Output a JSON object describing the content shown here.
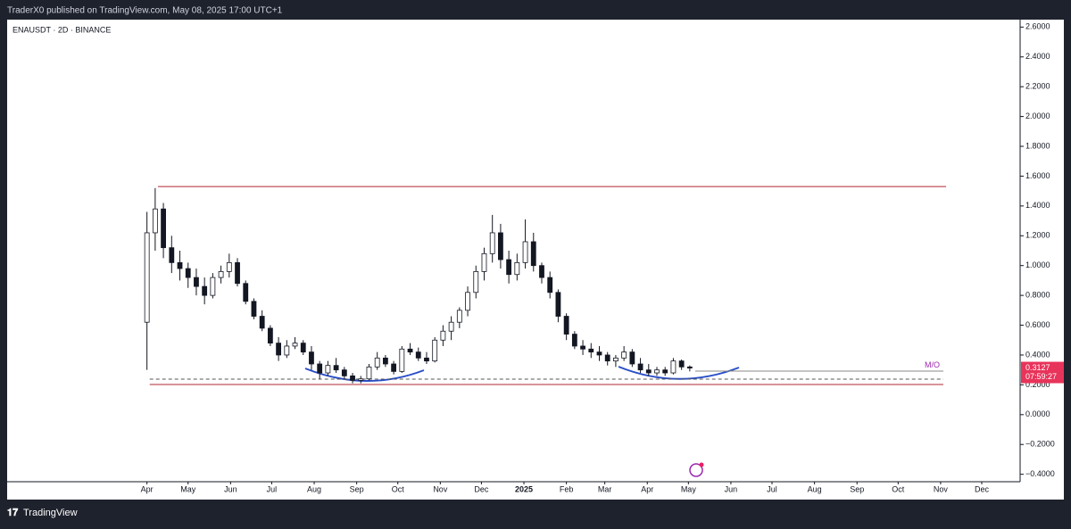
{
  "header": "TraderX0 published on TradingView.com, May 08, 2025 17:00 UTC+1",
  "footer": "TradingView",
  "chart_data": {
    "type": "candlestick",
    "title": "ENAUSDT · 2D · BINANCE",
    "x": [
      0,
      6,
      12,
      18,
      24,
      30,
      36,
      42,
      48,
      54,
      60,
      66,
      72,
      78,
      84,
      90,
      96,
      102,
      108,
      114,
      120,
      126,
      132,
      138,
      144,
      150,
      156,
      162,
      168,
      174,
      180,
      186,
      192,
      198,
      204,
      210,
      216,
      222,
      228,
      234,
      240,
      246,
      252,
      258,
      264,
      270,
      276,
      282,
      288,
      294,
      300,
      306,
      312,
      318,
      324,
      330,
      336,
      342,
      348,
      354,
      360,
      366,
      372,
      378,
      384,
      390,
      396
    ],
    "open": [
      0.62,
      1.22,
      1.38,
      1.12,
      1.02,
      0.98,
      0.92,
      0.86,
      0.8,
      0.92,
      0.96,
      1.02,
      0.88,
      0.76,
      0.66,
      0.58,
      0.48,
      0.4,
      0.46,
      0.48,
      0.42,
      0.34,
      0.28,
      0.33,
      0.3,
      0.26,
      0.23,
      0.24,
      0.32,
      0.38,
      0.34,
      0.29,
      0.44,
      0.42,
      0.38,
      0.36,
      0.5,
      0.56,
      0.62,
      0.7,
      0.82,
      0.96,
      1.08,
      1.22,
      1.04,
      0.94,
      1.02,
      1.16,
      1.0,
      0.92,
      0.82,
      0.66,
      0.54,
      0.46,
      0.44,
      0.42,
      0.4,
      0.36,
      0.38,
      0.42,
      0.34,
      0.3,
      0.28,
      0.3,
      0.28,
      0.36,
      0.32
    ],
    "high": [
      1.36,
      1.52,
      1.42,
      1.2,
      1.1,
      1.02,
      0.98,
      0.92,
      0.95,
      1.0,
      1.08,
      1.05,
      0.9,
      0.78,
      0.7,
      0.6,
      0.52,
      0.5,
      0.52,
      0.5,
      0.46,
      0.36,
      0.36,
      0.38,
      0.32,
      0.28,
      0.26,
      0.34,
      0.42,
      0.4,
      0.36,
      0.46,
      0.48,
      0.45,
      0.42,
      0.52,
      0.6,
      0.66,
      0.72,
      0.86,
      1.0,
      1.12,
      1.34,
      1.28,
      1.1,
      1.08,
      1.31,
      1.22,
      1.02,
      0.96,
      0.84,
      0.68,
      0.56,
      0.5,
      0.48,
      0.46,
      0.42,
      0.4,
      0.46,
      0.44,
      0.38,
      0.34,
      0.32,
      0.32,
      0.38,
      0.37,
      0.33
    ],
    "low": [
      0.3,
      1.1,
      1.05,
      0.95,
      0.9,
      0.85,
      0.8,
      0.74,
      0.78,
      0.88,
      0.92,
      0.86,
      0.74,
      0.64,
      0.56,
      0.46,
      0.36,
      0.38,
      0.44,
      0.4,
      0.3,
      0.24,
      0.26,
      0.28,
      0.24,
      0.21,
      0.21,
      0.23,
      0.3,
      0.32,
      0.27,
      0.28,
      0.4,
      0.36,
      0.34,
      0.35,
      0.46,
      0.5,
      0.58,
      0.66,
      0.78,
      0.9,
      1.02,
      0.98,
      0.88,
      0.9,
      0.98,
      0.96,
      0.88,
      0.78,
      0.62,
      0.5,
      0.44,
      0.4,
      0.38,
      0.36,
      0.33,
      0.32,
      0.36,
      0.32,
      0.28,
      0.26,
      0.26,
      0.26,
      0.27,
      0.3,
      0.29
    ],
    "close": [
      1.22,
      1.38,
      1.12,
      1.02,
      0.98,
      0.92,
      0.86,
      0.8,
      0.92,
      0.96,
      1.02,
      0.88,
      0.76,
      0.66,
      0.58,
      0.48,
      0.4,
      0.46,
      0.48,
      0.42,
      0.34,
      0.28,
      0.33,
      0.3,
      0.26,
      0.23,
      0.24,
      0.32,
      0.38,
      0.34,
      0.29,
      0.44,
      0.42,
      0.38,
      0.36,
      0.5,
      0.56,
      0.62,
      0.7,
      0.82,
      0.96,
      1.08,
      1.22,
      1.04,
      0.94,
      1.02,
      1.16,
      1.0,
      0.92,
      0.82,
      0.66,
      0.54,
      0.46,
      0.44,
      0.42,
      0.4,
      0.36,
      0.38,
      0.42,
      0.34,
      0.3,
      0.28,
      0.3,
      0.28,
      0.36,
      0.32,
      0.3127
    ],
    "up_color": "#ffffff",
    "down_color": "#131722",
    "border_color": "#131722",
    "countdown": "07:59:27",
    "annotation": "M/O",
    "levels": [
      {
        "value": 1.53,
        "color": "#b22833",
        "style": "solid"
      },
      {
        "value": 0.202,
        "color": "#b22833",
        "style": "solid"
      },
      {
        "value": 0.238,
        "color": "#555555",
        "style": "dashed"
      },
      {
        "value": 0.292,
        "color": "#888888",
        "style": "solid"
      }
    ],
    "xlim": [
      -102,
      637
    ],
    "xticks": [
      {
        "value": 0,
        "label": "Apr"
      },
      {
        "value": 30,
        "label": "May"
      },
      {
        "value": 61,
        "label": "Jun"
      },
      {
        "value": 91,
        "label": "Jul"
      },
      {
        "value": 122,
        "label": "Aug"
      },
      {
        "value": 153,
        "label": "Sep"
      },
      {
        "value": 183,
        "label": "Oct"
      },
      {
        "value": 214,
        "label": "Nov"
      },
      {
        "value": 244,
        "label": "Dec"
      },
      {
        "value": 275,
        "label": "2025"
      },
      {
        "value": 306,
        "label": "Feb"
      },
      {
        "value": 334,
        "label": "Mar"
      },
      {
        "value": 365,
        "label": "Apr"
      },
      {
        "value": 395,
        "label": "May"
      },
      {
        "value": 426,
        "label": "Jun"
      },
      {
        "value": 456,
        "label": "Jul"
      },
      {
        "value": 487,
        "label": "Aug"
      },
      {
        "value": 518,
        "label": "Sep"
      },
      {
        "value": 548,
        "label": "Oct"
      },
      {
        "value": 579,
        "label": "Nov"
      },
      {
        "value": 609,
        "label": "Dec"
      }
    ],
    "ylim": [
      -0.45,
      2.65
    ],
    "yticks": [
      {
        "value": 2.6,
        "label": "2.6000"
      },
      {
        "value": 2.4,
        "label": "2.4000"
      },
      {
        "value": 2.2,
        "label": "2.2000"
      },
      {
        "value": 2.0,
        "label": "2.0000"
      },
      {
        "value": 1.8,
        "label": "1.8000"
      },
      {
        "value": 1.6,
        "label": "1.6000"
      },
      {
        "value": 1.4,
        "label": "1.4000"
      },
      {
        "value": 1.2,
        "label": "1.2000"
      },
      {
        "value": 1.0,
        "label": "1.0000"
      },
      {
        "value": 0.8,
        "label": "0.8000"
      },
      {
        "value": 0.6,
        "label": "0.6000"
      },
      {
        "value": 0.4,
        "label": "0.4000"
      },
      {
        "value": 0.2,
        "label": "0.2000"
      },
      {
        "value": 0.0,
        "label": "0.0000"
      },
      {
        "value": -0.2,
        "label": "−0.2000"
      },
      {
        "value": -0.4,
        "label": "−0.4000"
      }
    ]
  }
}
